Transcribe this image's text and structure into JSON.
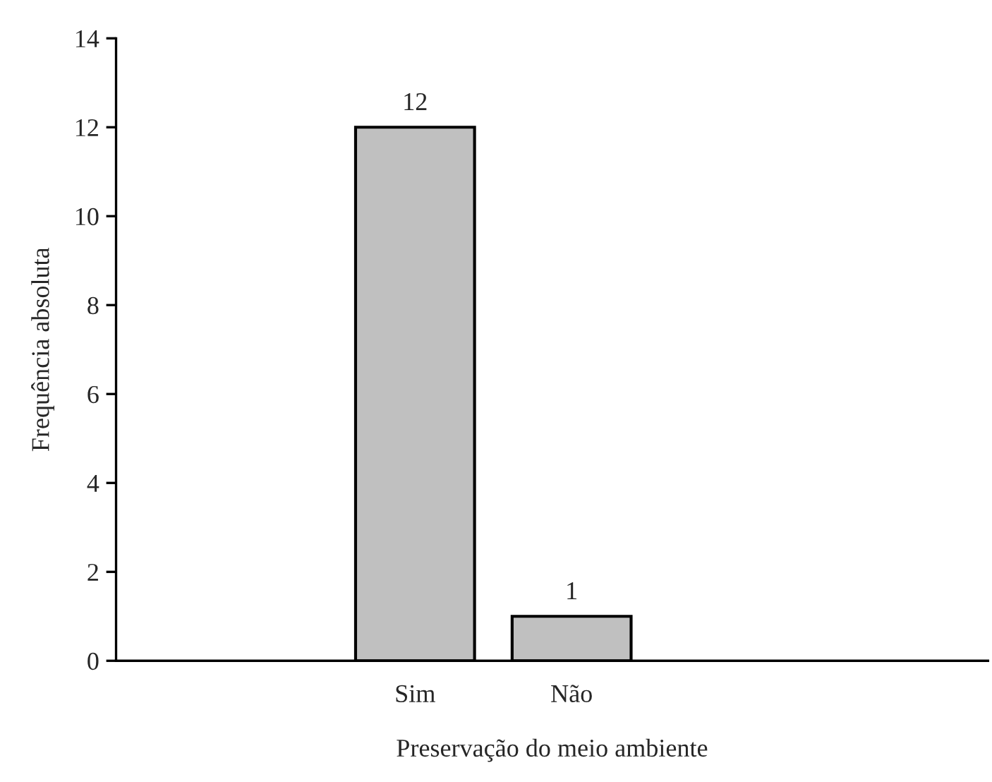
{
  "chart_data": {
    "type": "bar",
    "xlabel": "Preservação do meio ambiente",
    "ylabel": "Frequência absoluta",
    "categories": [
      "Sim",
      "Não"
    ],
    "values": [
      12,
      1
    ],
    "color": "#c0c0c0",
    "ylim": [
      0,
      14
    ],
    "yticks": [
      0,
      2,
      4,
      6,
      8,
      10,
      12,
      14
    ],
    "data_labels": true,
    "grid": false
  }
}
